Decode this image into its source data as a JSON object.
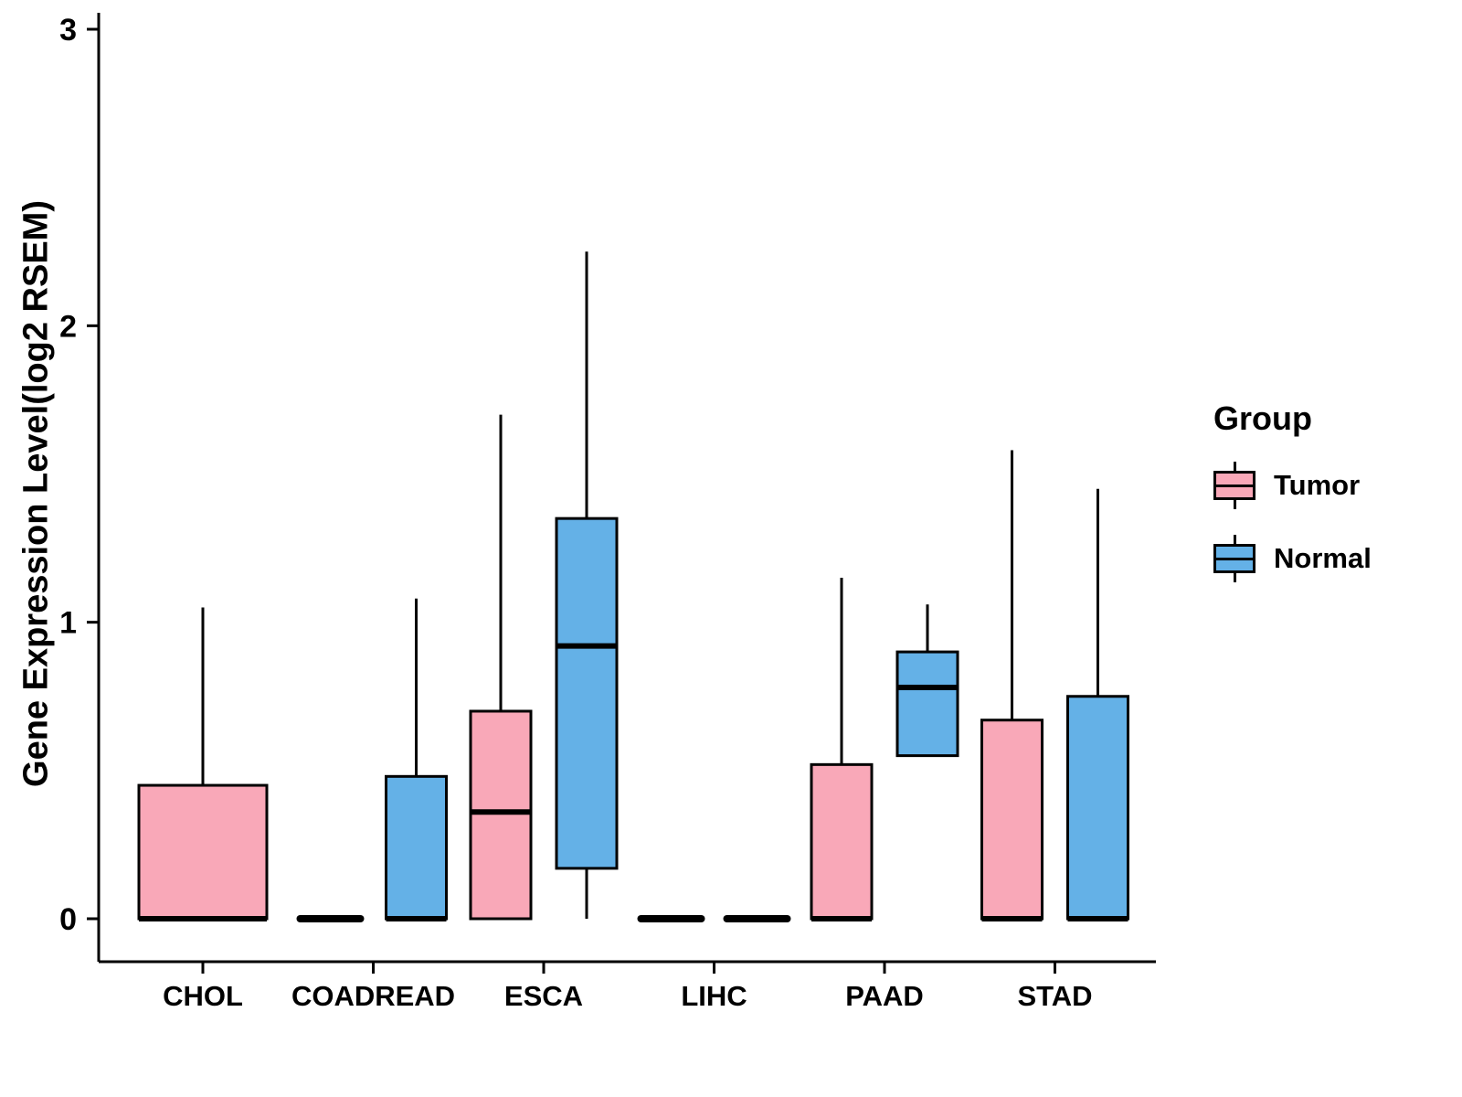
{
  "chart_data": {
    "type": "boxplot",
    "title": "",
    "xlabel": "",
    "ylabel": "Gene Expression Level(log2 RSEM)",
    "ylim": [
      0,
      3
    ],
    "yticks": [
      0,
      1,
      2,
      3
    ],
    "grid": "off",
    "categories": [
      "CHOL",
      "COADREAD",
      "ESCA",
      "LIHC",
      "PAAD",
      "STAD"
    ],
    "groups": [
      {
        "name": "Tumor",
        "color": "#F9A8B8"
      },
      {
        "name": "Normal",
        "color": "#64B1E7"
      }
    ],
    "boxes": [
      {
        "category": "CHOL",
        "group": "Tumor",
        "min": 0,
        "q1": 0,
        "median": 0,
        "q3": 0.45,
        "max": 1.05,
        "wide": true
      },
      {
        "category": "COADREAD",
        "group": "Tumor",
        "min": 0,
        "q1": 0,
        "median": 0,
        "q3": 0,
        "max": 0
      },
      {
        "category": "COADREAD",
        "group": "Normal",
        "min": 0,
        "q1": 0,
        "median": 0,
        "q3": 0.48,
        "max": 1.08
      },
      {
        "category": "ESCA",
        "group": "Tumor",
        "min": 0,
        "q1": 0,
        "median": 0.36,
        "q3": 0.7,
        "max": 1.7
      },
      {
        "category": "ESCA",
        "group": "Normal",
        "min": 0,
        "q1": 0.17,
        "median": 0.92,
        "q3": 1.35,
        "max": 2.25
      },
      {
        "category": "LIHC",
        "group": "Tumor",
        "min": 0,
        "q1": 0,
        "median": 0,
        "q3": 0,
        "max": 0
      },
      {
        "category": "LIHC",
        "group": "Normal",
        "min": 0,
        "q1": 0,
        "median": 0,
        "q3": 0,
        "max": 0
      },
      {
        "category": "PAAD",
        "group": "Tumor",
        "min": 0,
        "q1": 0,
        "median": 0,
        "q3": 0.52,
        "max": 1.15
      },
      {
        "category": "PAAD",
        "group": "Normal",
        "min": 0.55,
        "q1": 0.55,
        "median": 0.78,
        "q3": 0.9,
        "max": 1.06
      },
      {
        "category": "STAD",
        "group": "Tumor",
        "min": 0,
        "q1": 0,
        "median": 0,
        "q3": 0.67,
        "max": 1.58
      },
      {
        "category": "STAD",
        "group": "Normal",
        "min": 0,
        "q1": 0,
        "median": 0,
        "q3": 0.75,
        "max": 1.45
      }
    ],
    "legend": {
      "title": "Group",
      "entries": [
        "Tumor",
        "Normal"
      ],
      "position": "right"
    }
  }
}
